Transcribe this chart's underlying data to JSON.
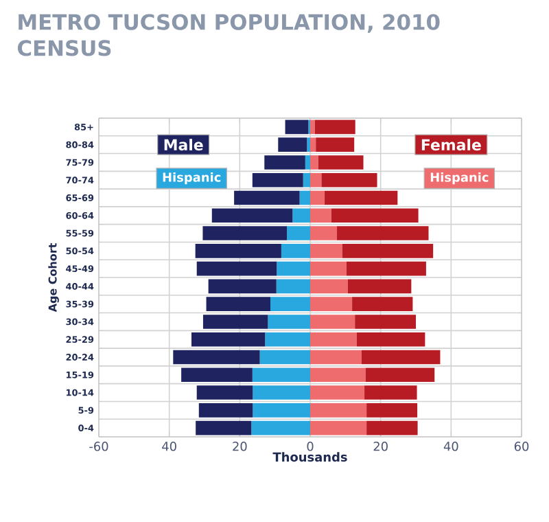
{
  "chart_data": {
    "type": "bar",
    "orientation": "horizontal",
    "stacked": true,
    "title": "METRO TUCSON POPULATION, 2010 CENSUS",
    "xlabel": "Thousands",
    "ylabel": "Age Cohort",
    "categories": [
      "85+",
      "80-84",
      "75-79",
      "70-74",
      "65-69",
      "60-64",
      "55-59",
      "50-54",
      "45-49",
      "40-44",
      "35-39",
      "30-34",
      "25-29",
      "20-24",
      "15-19",
      "10-14",
      "5-9",
      "0-4"
    ],
    "series": [
      {
        "name": "Hispanic",
        "color": "#29a8e0",
        "values": [
          -0.5,
          -0.9,
          -1.4,
          -2.0,
          -3.0,
          -5.0,
          -6.6,
          -8.2,
          -9.5,
          -9.6,
          -11.3,
          -12.0,
          -12.8,
          -14.3,
          -16.4,
          -16.3,
          -16.3,
          -16.7
        ]
      },
      {
        "name": "Male",
        "color": "#1f2460",
        "values": [
          -6.6,
          -8.2,
          -11.6,
          -14.4,
          -18.6,
          -22.9,
          -23.9,
          -24.4,
          -22.7,
          -19.3,
          -18.2,
          -18.4,
          -20.9,
          -24.6,
          -20.2,
          -15.9,
          -15.3,
          -15.8
        ]
      },
      {
        "name": "Hispanic",
        "color": "#ee6b6e",
        "values": [
          1.3,
          1.6,
          2.3,
          3.2,
          4.1,
          6.0,
          7.6,
          9.1,
          10.3,
          10.7,
          11.9,
          12.7,
          13.2,
          14.6,
          15.7,
          15.4,
          16.0,
          16.0
        ]
      },
      {
        "name": "Female",
        "color": "#b71c25",
        "values": [
          11.5,
          10.9,
          12.8,
          15.8,
          20.7,
          24.7,
          26.0,
          25.8,
          22.6,
          18.0,
          17.2,
          17.3,
          19.4,
          22.3,
          19.6,
          14.9,
          14.4,
          14.5
        ]
      }
    ],
    "xlim": [
      -60,
      60
    ],
    "xticks": [
      {
        "value": -60,
        "label": "-60"
      },
      {
        "value": -40,
        "label": "40"
      },
      {
        "value": -20,
        "label": "20"
      },
      0,
      20,
      40,
      60
    ],
    "grid": true,
    "legend": "top"
  }
}
